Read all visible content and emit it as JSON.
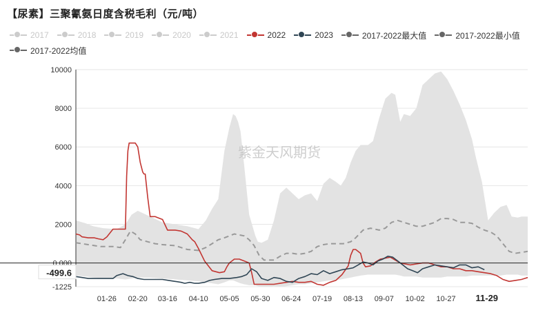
{
  "title": "【尿素】三聚氰氨日度含税毛利（元/吨）",
  "watermark": "紫金天风期货",
  "legend": [
    {
      "name": "2017",
      "color": "#cccccc",
      "active": false
    },
    {
      "name": "2018",
      "color": "#cccccc",
      "active": false
    },
    {
      "name": "2019",
      "color": "#cccccc",
      "active": false
    },
    {
      "name": "2020",
      "color": "#cccccc",
      "active": false
    },
    {
      "name": "2021",
      "color": "#cccccc",
      "active": false
    },
    {
      "name": "2022",
      "color": "#c23531",
      "active": true
    },
    {
      "name": "2023",
      "color": "#2f4554",
      "active": true
    },
    {
      "name": "2017-2022最大值",
      "color": "#666666",
      "active": true
    },
    {
      "name": "2017-2022最小值",
      "color": "#666666",
      "active": true
    },
    {
      "name": "2017-2022均值",
      "color": "#666666",
      "active": true
    }
  ],
  "chart_data": {
    "type": "line",
    "title": "【尿素】三聚氰氨日度含税毛利（元/吨）",
    "xlabel": "",
    "ylabel": "",
    "ylim": [
      -1225,
      10000
    ],
    "yticks": [
      "10000",
      "8000",
      "6000",
      "4000",
      "2000",
      "0.000",
      "-1225"
    ],
    "ytick_values": [
      10000,
      8000,
      6000,
      4000,
      2000,
      0,
      -1225
    ],
    "xticks": [
      "01-26",
      "02-20",
      "03-16",
      "04-10",
      "05-05",
      "05-30",
      "06-24",
      "07-19",
      "08-13",
      "09-07",
      "10-02",
      "10-27",
      "11-29"
    ],
    "xtick_days": [
      25,
      50,
      74,
      99,
      124,
      149,
      174,
      199,
      224,
      249,
      274,
      299,
      332
    ],
    "x_axis_days": [
      0,
      365
    ],
    "highlight_xtick": "11-29",
    "y_pointer": {
      "label": "-499.6",
      "value": -499.6
    },
    "grid": true,
    "legend_position": "top",
    "band": {
      "name": "2017-2022最大值 / 2017-2022最小值",
      "color": "#e3e3e3",
      "x": [
        0,
        8,
        14,
        22,
        33,
        40,
        45,
        50,
        60,
        70,
        80,
        90,
        99,
        105,
        110,
        115,
        120,
        124,
        127,
        129,
        131,
        133,
        136,
        140,
        145,
        147,
        150,
        155,
        160,
        165,
        170,
        175,
        180,
        185,
        190,
        195,
        200,
        205,
        210,
        214,
        218,
        222,
        226,
        230,
        236,
        240,
        245,
        250,
        255,
        258,
        262,
        265,
        270,
        275,
        280,
        285,
        290,
        295,
        300,
        305,
        310,
        315,
        320,
        323,
        328,
        333,
        338,
        343,
        348,
        352,
        357,
        360,
        365
      ],
      "upper": [
        2200,
        2050,
        1900,
        1800,
        1750,
        2000,
        2500,
        2700,
        2400,
        2100,
        2000,
        1900,
        1750,
        2200,
        2800,
        3300,
        5800,
        7000,
        7700,
        7600,
        7300,
        6800,
        5000,
        2500,
        1400,
        1100,
        1050,
        1200,
        2200,
        3600,
        3900,
        3600,
        3300,
        3500,
        3600,
        3200,
        4100,
        4400,
        4200,
        4000,
        4400,
        5200,
        5800,
        6100,
        6100,
        6300,
        7500,
        8500,
        8800,
        8700,
        7300,
        7700,
        7600,
        8000,
        9200,
        9500,
        9800,
        9900,
        9500,
        8900,
        8200,
        7400,
        6400,
        5500,
        4200,
        2200,
        2600,
        2900,
        3000,
        2400,
        2350,
        2400,
        2400
      ],
      "lower": [
        -650,
        -700,
        -750,
        -800,
        -800,
        -850,
        -800,
        -750,
        -750,
        -800,
        -850,
        -900,
        -950,
        -1000,
        -1050,
        -1100,
        -1000,
        -900,
        -900,
        -950,
        -1000,
        -1050,
        -1100,
        -1150,
        -1150,
        -1200,
        -1225,
        -1225,
        -1200,
        -1225,
        -1200,
        -1150,
        -1100,
        -1100,
        -1050,
        -1000,
        -950,
        -900,
        -900,
        -850,
        -800,
        -750,
        -700,
        -650,
        -600,
        -600,
        -600,
        -600,
        -600,
        -600,
        -650,
        -700,
        -700,
        -700,
        -750,
        -750,
        -750,
        -750,
        -700,
        -700,
        -700,
        -700,
        -650,
        -650,
        -650,
        -650,
        -650,
        -650,
        -600,
        -600,
        -600,
        -650,
        -650
      ]
    },
    "series": [
      {
        "name": "2017-2022均值",
        "color": "#999999",
        "dashed": true,
        "x": [
          0,
          10,
          20,
          30,
          36,
          40,
          44,
          48,
          52,
          58,
          64,
          70,
          80,
          90,
          99,
          105,
          110,
          115,
          120,
          124,
          128,
          132,
          136,
          140,
          144,
          148,
          152,
          156,
          160,
          165,
          170,
          175,
          180,
          185,
          190,
          195,
          200,
          205,
          210,
          216,
          222,
          226,
          232,
          238,
          245,
          250,
          255,
          260,
          265,
          270,
          275,
          280,
          285,
          290,
          295,
          300,
          305,
          310,
          315,
          320,
          325,
          330,
          335,
          340,
          345,
          350,
          355,
          360,
          365
        ],
        "y": [
          1050,
          950,
          850,
          850,
          800,
          1200,
          1650,
          1500,
          1200,
          1100,
          1000,
          950,
          900,
          700,
          650,
          800,
          1000,
          1200,
          1300,
          1400,
          1500,
          1450,
          1400,
          1200,
          900,
          400,
          150,
          150,
          150,
          350,
          500,
          500,
          450,
          500,
          600,
          850,
          950,
          1000,
          1000,
          1000,
          1100,
          1300,
          1700,
          1800,
          1700,
          1800,
          2100,
          2200,
          2100,
          2000,
          1900,
          1900,
          2000,
          2100,
          2300,
          2300,
          2250,
          2100,
          2100,
          2050,
          1850,
          1700,
          1600,
          1400,
          1000,
          600,
          500,
          550,
          600
        ]
      },
      {
        "name": "2022",
        "color": "#c23531",
        "dashed": false,
        "x": [
          0,
          3,
          5,
          10,
          15,
          18,
          22,
          25,
          30,
          34,
          38,
          40,
          41,
          42,
          43,
          44,
          46,
          48,
          50,
          52,
          54,
          55,
          56,
          58,
          60,
          62,
          64,
          66,
          68,
          70,
          74,
          80,
          85,
          90,
          94,
          96,
          99,
          104,
          110,
          116,
          120,
          122,
          124,
          128,
          132,
          136,
          140,
          142,
          144,
          148,
          155,
          160,
          165,
          170,
          175,
          180,
          185,
          190,
          195,
          200,
          205,
          210,
          215,
          220,
          222,
          224,
          226,
          230,
          232,
          234,
          238,
          242,
          246,
          250,
          254,
          258,
          262,
          266,
          270,
          275,
          280,
          285,
          290,
          295,
          300,
          305,
          310,
          315,
          320,
          325,
          330,
          335,
          340,
          345,
          350,
          355,
          360,
          365
        ],
        "y": [
          1500,
          1450,
          1350,
          1300,
          1300,
          1250,
          1200,
          1350,
          1750,
          1750,
          1750,
          1750,
          4500,
          5800,
          6200,
          6200,
          6200,
          6200,
          6000,
          5200,
          4700,
          4600,
          4600,
          3400,
          2400,
          2400,
          2400,
          2350,
          2300,
          2250,
          1700,
          1700,
          1650,
          1500,
          1200,
          1100,
          750,
          100,
          -400,
          -500,
          -450,
          -200,
          0,
          200,
          200,
          100,
          0,
          -500,
          -1100,
          -1100,
          -1100,
          -1100,
          -1050,
          -1000,
          -950,
          -1000,
          -1000,
          -950,
          -1100,
          -1150,
          -1000,
          -900,
          -600,
          -150,
          400,
          700,
          700,
          500,
          0,
          -200,
          -150,
          50,
          200,
          250,
          300,
          150,
          0,
          -50,
          -100,
          -50,
          0,
          0,
          -100,
          -200,
          -200,
          -300,
          -300,
          -400,
          -400,
          -450,
          -500,
          -550,
          -650,
          -850,
          -950,
          -900,
          -850,
          -750
        ]
      },
      {
        "name": "2023",
        "color": "#2f4554",
        "dashed": false,
        "x": [
          0,
          5,
          10,
          15,
          20,
          25,
          30,
          33,
          38,
          42,
          46,
          50,
          55,
          60,
          65,
          70,
          75,
          80,
          85,
          88,
          92,
          96,
          99,
          104,
          108,
          112,
          118,
          124,
          130,
          134,
          138,
          142,
          146,
          150,
          155,
          160,
          165,
          170,
          175,
          180,
          185,
          190,
          195,
          200,
          205,
          210,
          215,
          220,
          224,
          228,
          232,
          236,
          240,
          244,
          248,
          252,
          256,
          260,
          264,
          268,
          272,
          276,
          280,
          285,
          290,
          295,
          300,
          305,
          310,
          315,
          320,
          325,
          330
        ],
        "y": [
          -700,
          -750,
          -800,
          -800,
          -800,
          -800,
          -800,
          -650,
          -550,
          -650,
          -700,
          -800,
          -850,
          -850,
          -850,
          -850,
          -900,
          -950,
          -1000,
          -1050,
          -1000,
          -1050,
          -1050,
          -1000,
          -900,
          -850,
          -800,
          -800,
          -750,
          -700,
          -600,
          -300,
          -450,
          -800,
          -900,
          -750,
          -800,
          -950,
          -1000,
          -800,
          -700,
          -550,
          -600,
          -400,
          -550,
          -450,
          -350,
          -300,
          -250,
          -100,
          50,
          0,
          -100,
          100,
          200,
          350,
          300,
          100,
          -100,
          -300,
          -400,
          -500,
          -300,
          -200,
          -100,
          -150,
          -200,
          -250,
          -100,
          -100,
          -250,
          -200,
          -350
        ]
      }
    ]
  }
}
